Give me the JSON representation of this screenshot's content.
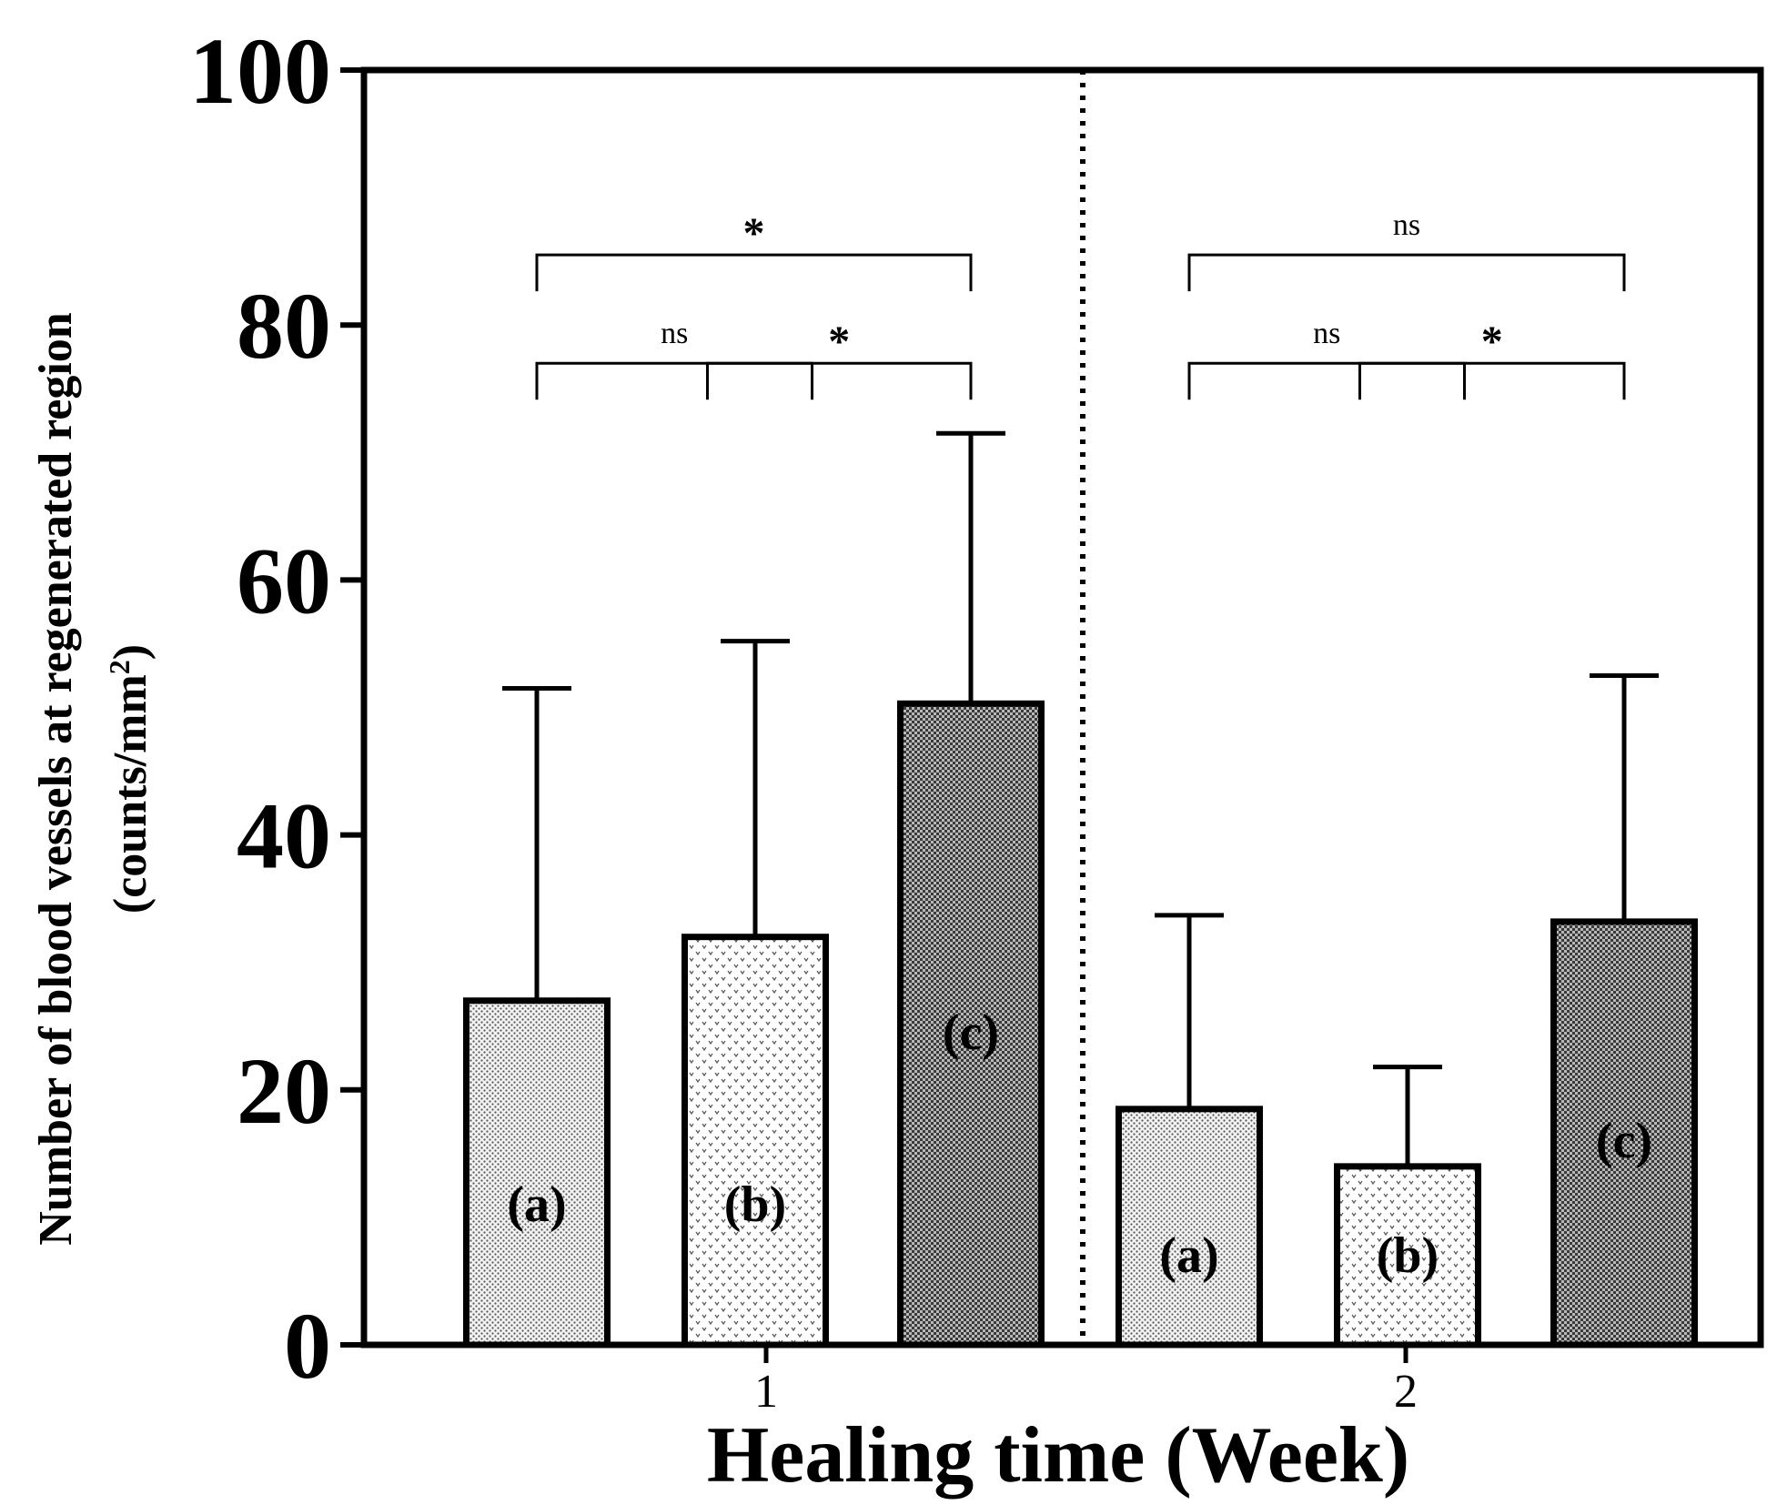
{
  "chart_data": {
    "type": "bar",
    "title": "",
    "xlabel": "Healing time (Week)",
    "ylabel_line1": "Number of blood vessels at regenerated region",
    "ylabel_line2_prefix": "(counts/mm",
    "ylabel_line2_sup": "2",
    "ylabel_line2_suffix": ")",
    "ylim": [
      0,
      100
    ],
    "yticks": [
      0,
      20,
      40,
      60,
      80,
      100
    ],
    "yticks_labels": [
      "0",
      "20",
      "40",
      "60",
      "80",
      "100"
    ],
    "grid": false,
    "groups": [
      {
        "label": "1",
        "bars": [
          {
            "label": "(a)",
            "mean": 27,
            "error": 51.5,
            "pattern": "fine-dots",
            "label_value": 11
          },
          {
            "label": "(b)",
            "mean": 32,
            "error": 55.2,
            "pattern": "chevron",
            "label_value": 11
          },
          {
            "label": "(c)",
            "mean": 50.3,
            "error": 71.5,
            "pattern": "checker",
            "label_value": 24.5
          }
        ],
        "comparisons": [
          {
            "from": 0,
            "to": 2,
            "text": "*",
            "level": 85.5
          },
          {
            "from": 0,
            "to": 1,
            "text": "ns",
            "level": 77
          },
          {
            "from": 1,
            "to": 2,
            "text": "*",
            "level": 77
          }
        ]
      },
      {
        "label": "2",
        "bars": [
          {
            "label": "(a)",
            "mean": 18.5,
            "error": 33.7,
            "pattern": "fine-dots",
            "label_value": 7
          },
          {
            "label": "(b)",
            "mean": 14,
            "error": 21.8,
            "pattern": "chevron",
            "label_value": 7
          },
          {
            "label": "(c)",
            "mean": 33.2,
            "error": 52.5,
            "pattern": "checker",
            "label_value": 16
          }
        ],
        "comparisons": [
          {
            "from": 0,
            "to": 2,
            "text": "ns",
            "level": 85.5
          },
          {
            "from": 0,
            "to": 1,
            "text": "ns",
            "level": 77
          },
          {
            "from": 1,
            "to": 2,
            "text": "*",
            "level": 77
          }
        ]
      }
    ]
  }
}
